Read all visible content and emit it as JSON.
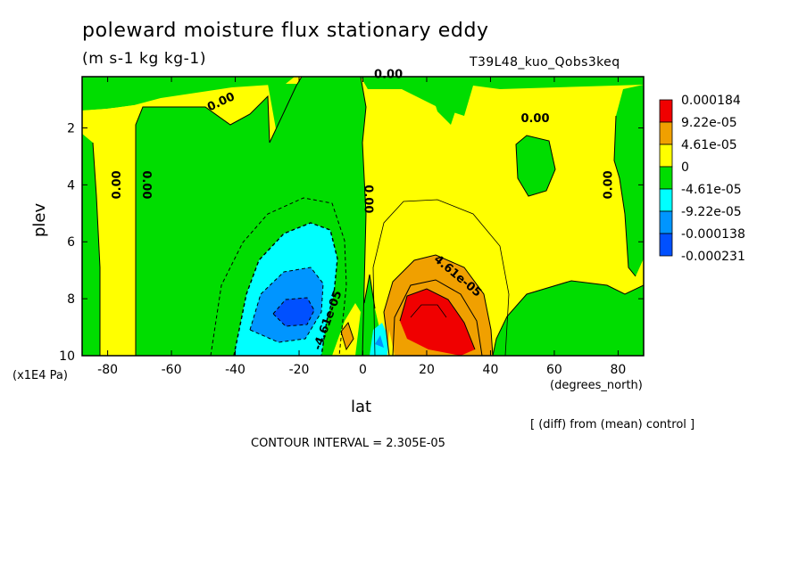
{
  "figure": {
    "title": "poleward moisture flux stationary eddy",
    "units": "(m s-1 kg kg-1)",
    "run_name": "T39L48_kuo_Qobs3keq",
    "x_unit": "(degrees_north)",
    "y_unit": "(x1E4 Pa)",
    "diff_note": "[ (diff) from (mean) control ]",
    "contour_interval": "CONTOUR INTERVAL = 2.305E-05"
  },
  "chart_data": {
    "type": "heatmap",
    "xlabel": "lat",
    "ylabel": "plev",
    "xlim": [
      -88,
      88
    ],
    "ylim": [
      0.2,
      10
    ],
    "y_inverted": true,
    "x_ticks": [
      -80,
      -60,
      -40,
      -20,
      0,
      20,
      40,
      60,
      80
    ],
    "x_tick_labels": [
      "-80",
      "-60",
      "-40",
      "-20",
      "0",
      "20",
      "40",
      "60",
      "80"
    ],
    "y_ticks": [
      2,
      4,
      6,
      8,
      10
    ],
    "y_tick_labels": [
      "2",
      "4",
      "6",
      "8",
      "10"
    ],
    "legend_placement": "right",
    "colorbar": {
      "labels": [
        "0.000184",
        "9.22e-05",
        "4.61e-05",
        "0",
        "-4.61e-05",
        "-9.22e-05",
        "-0.000138",
        "-0.000231"
      ],
      "colors": [
        "#f00000",
        "#f0a000",
        "#ffff00",
        "#00dd00",
        "#00ffff",
        "#0095ff",
        "#0050ff"
      ]
    },
    "contour_labels": [
      {
        "text": "0.00",
        "lat": -76,
        "plev": 4.0,
        "rotate": -90
      },
      {
        "text": "0.00",
        "lat": -69,
        "plev": 4.0,
        "rotate": 90
      },
      {
        "text": "0.00",
        "lat": -44,
        "plev": 1.2,
        "rotate": -25
      },
      {
        "text": "0.00",
        "lat": 8,
        "plev": 0.25,
        "rotate": 0
      },
      {
        "text": "0.00",
        "lat": 0.5,
        "plev": 4.5,
        "rotate": 90
      },
      {
        "text": "0.00",
        "lat": 54,
        "plev": 1.8,
        "rotate": 0
      },
      {
        "text": "0.00",
        "lat": 78,
        "plev": 4.0,
        "rotate": -90
      },
      {
        "text": "4.61e-05",
        "lat": 29,
        "plev": 7.3,
        "rotate": 40
      },
      {
        "text": "-4.61e-05",
        "lat": -10,
        "plev": 8.8,
        "rotate": -70
      }
    ]
  }
}
